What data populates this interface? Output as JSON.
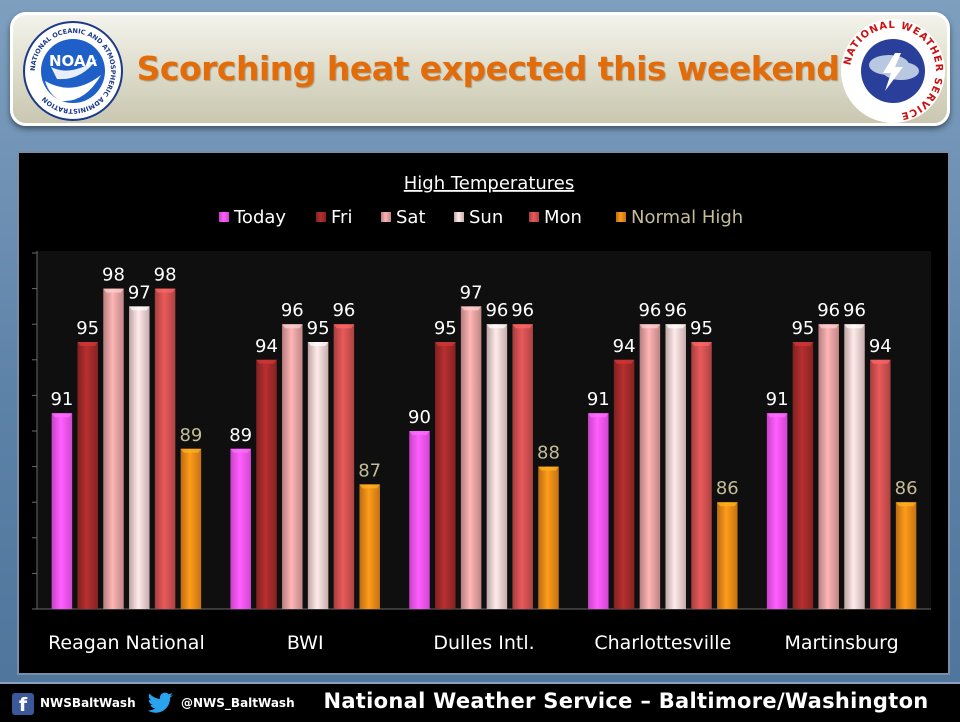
{
  "header": {
    "title": "Scorching heat expected this weekend",
    "left_logo": {
      "icon": "noaa-logo",
      "text": "NOAA",
      "ring_text": "NATIONAL OCEANIC AND ATMOSPHERIC ADMINISTRATION"
    },
    "right_logo": {
      "icon": "nws-logo",
      "ring_text": "NATIONAL WEATHER SERVICE"
    }
  },
  "chart_data": {
    "type": "bar",
    "title": "High Temperatures",
    "categories": [
      "Reagan National",
      "BWI",
      "Dulles Intl.",
      "Charlottesville",
      "Martinsburg"
    ],
    "series": [
      {
        "name": "Today",
        "values": [
          91,
          89,
          90,
          91,
          91
        ],
        "color": "#ff55ff"
      },
      {
        "name": "Fri",
        "values": [
          95,
          94,
          95,
          94,
          95
        ],
        "color": "#a42a2a"
      },
      {
        "name": "Sat",
        "values": [
          98,
          96,
          97,
          96,
          96
        ],
        "color": "#e8a2a2"
      },
      {
        "name": "Sun",
        "values": [
          97,
          95,
          96,
          96,
          96
        ],
        "color": "#f4d2d2"
      },
      {
        "name": "Mon",
        "values": [
          98,
          96,
          96,
          95,
          94
        ],
        "color": "#d25050"
      },
      {
        "name": "Normal High",
        "values": [
          89,
          87,
          88,
          86,
          86
        ],
        "color": "#ee8b17"
      }
    ],
    "ylim": [
      80,
      100
    ],
    "data_label_colors": {
      "default": "#ffffff",
      "Normal High": "#c4bd97"
    },
    "legend": "top",
    "grid": false,
    "background": "#000000"
  },
  "footer": {
    "facebook_icon": "facebook-icon",
    "facebook_handle": "NWSBaltWash",
    "twitter_icon": "twitter-icon",
    "twitter_handle": "@NWS_BaltWash",
    "office": "National Weather Service – Baltimore/Washington"
  }
}
